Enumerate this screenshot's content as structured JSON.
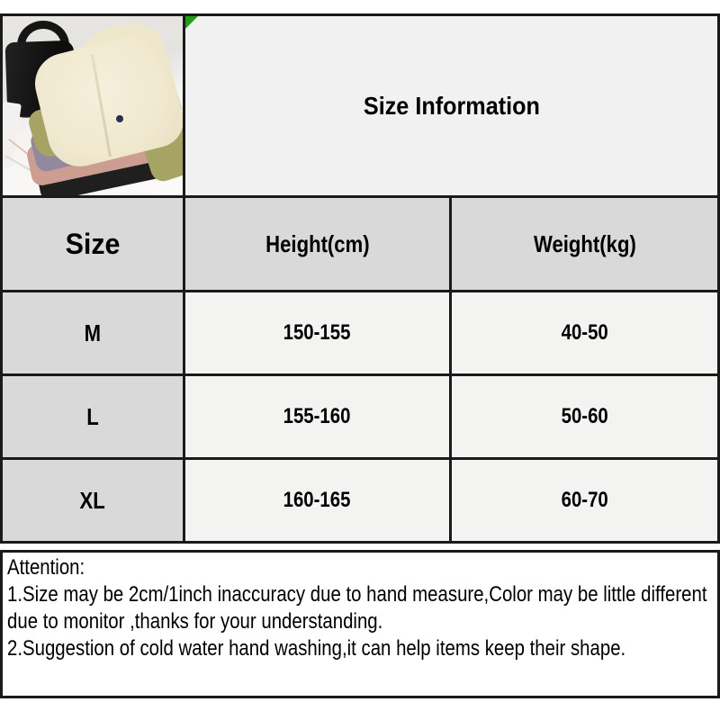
{
  "title": "Size Information",
  "colors": {
    "frame": "#1a1a1a",
    "accent-green": "#1f9e13",
    "cell-gray": "#d9d9d9",
    "cell-light": "#f3f3f2",
    "panel-light": "#f1f1f1",
    "jacket-cream": "#f2ecd5",
    "jacket-olive": "#a6a464",
    "jacket-purple": "#93899f",
    "jacket-pink": "#cb9e91",
    "jacket-black": "#1f1f1f",
    "bag-black": "#151515"
  },
  "photo": {
    "description": "Stack of folded hooded jackets (cream, olive green, purple, pink, black) with a black handbag behind"
  },
  "size_table": {
    "headers": [
      "Size",
      "Height(cm)",
      "Weight(kg)"
    ],
    "rows": [
      [
        "M",
        "150-155",
        "40-50"
      ],
      [
        "L",
        "155-160",
        "50-60"
      ],
      [
        "XL",
        "160-165",
        "60-70"
      ]
    ]
  },
  "attention": {
    "heading": "Attention:",
    "lines": [
      "1.Size may be 2cm/1inch inaccuracy due to hand measure,Color may be little different due to monitor ,thanks for your understanding.",
      "2.Suggestion of cold water hand washing,it can help items keep their shape."
    ]
  }
}
